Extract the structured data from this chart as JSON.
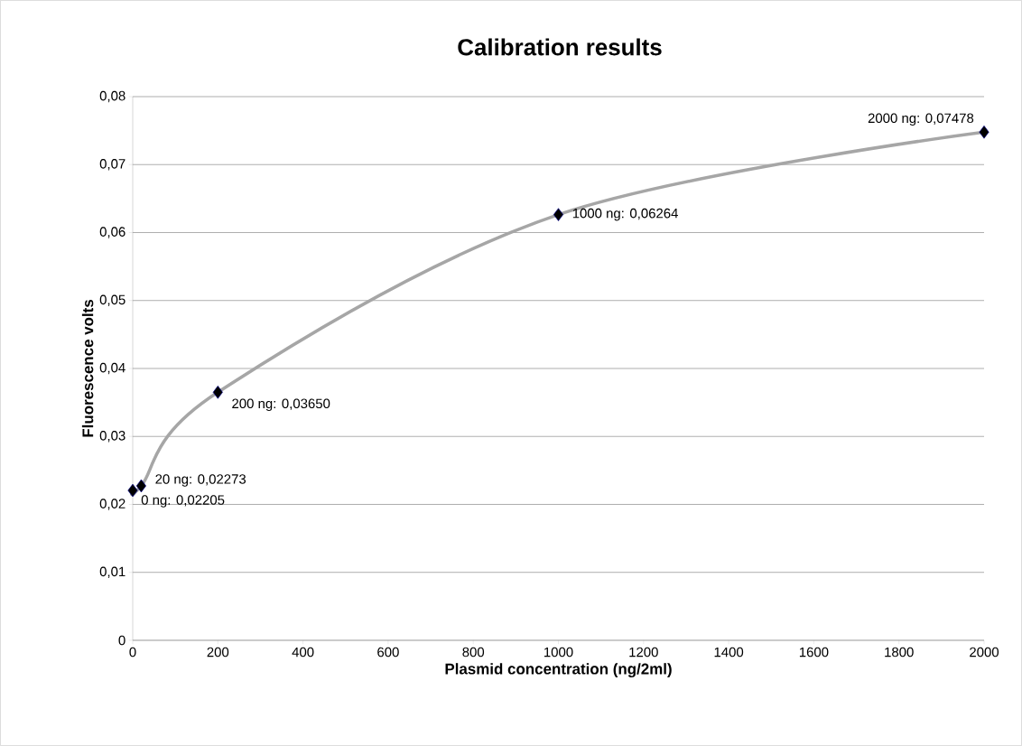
{
  "chart_data": {
    "type": "scatter",
    "title": "Calibration results",
    "xlabel": "Plasmid concentration (ng/2ml)",
    "ylabel": "Fluorescence volts",
    "x": [
      0,
      20,
      200,
      1000,
      2000
    ],
    "series": [
      {
        "type": "line",
        "color": "#a6a6a6",
        "marker": "none",
        "values": [
          0.02205,
          0.02273,
          0.0365,
          0.06264,
          0.07478
        ]
      },
      {
        "color": "#000000",
        "marker": "diamond",
        "values": [
          0.02205,
          0.02273,
          0.0365,
          0.06264,
          0.07478
        ],
        "value_labels": [
          "0 ng: 0,02205",
          "20 ng: 0,02273",
          "200 ng: 0,03650",
          "1000 ng: 0,06264",
          "2000 ng: 0,07478"
        ]
      }
    ],
    "xlim": [
      0,
      2000
    ],
    "xticks": [
      0,
      200,
      400,
      600,
      800,
      1000,
      1200,
      1400,
      1600,
      1800,
      2000
    ],
    "ylim": [
      0,
      0.08
    ],
    "yticks": [
      0,
      {
        "value": 0.01,
        "label": "0,01"
      },
      {
        "value": 0.02,
        "label": "0,02"
      },
      {
        "value": 0.03,
        "label": "0,03"
      },
      {
        "value": 0.04,
        "label": "0,04"
      },
      {
        "value": 0.05,
        "label": "0,05"
      },
      {
        "value": 0.06,
        "label": "0,06"
      },
      {
        "value": 0.07,
        "label": "0,07"
      },
      {
        "value": 0.08,
        "label": "0,08"
      }
    ],
    "grid": "y"
  }
}
